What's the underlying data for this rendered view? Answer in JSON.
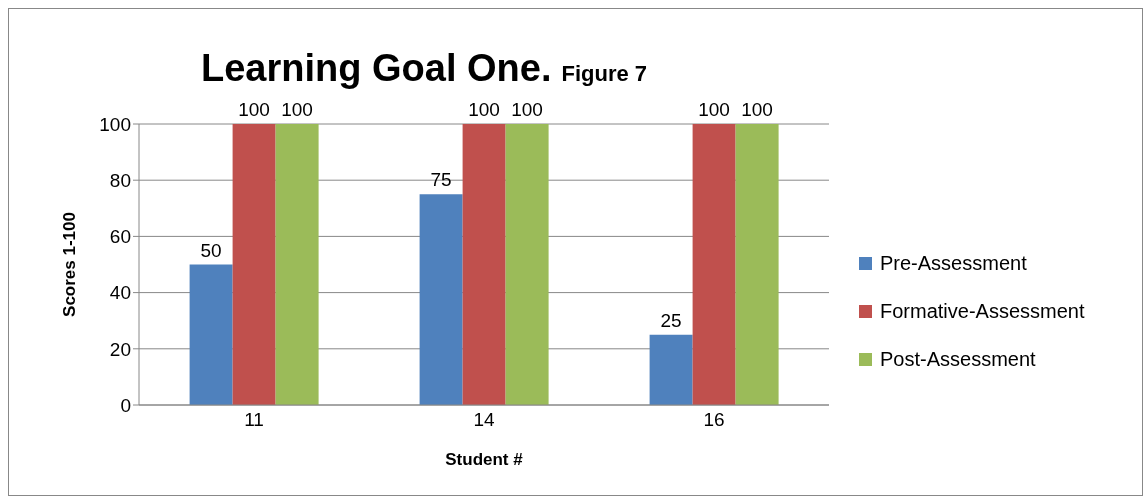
{
  "chart_data": {
    "type": "bar",
    "title": "Learning Goal One.",
    "subtitle": "Figure 7",
    "xlabel": "Student #",
    "ylabel": "Scores 1-100",
    "categories": [
      "11",
      "14",
      "16"
    ],
    "series": [
      {
        "name": "Pre-Assessment",
        "color": "#4f81bd",
        "values": [
          50,
          75,
          25
        ]
      },
      {
        "name": "Formative-Assessment",
        "color": "#c0504d",
        "values": [
          100,
          100,
          100
        ]
      },
      {
        "name": "Post-Assessment",
        "color": "#9bbb59",
        "values": [
          100,
          100,
          100
        ]
      }
    ],
    "ylim": [
      0,
      100
    ],
    "yticks": [
      0,
      20,
      40,
      60,
      80,
      100
    ],
    "grid": "y",
    "legend": "right",
    "data_labels": true
  }
}
